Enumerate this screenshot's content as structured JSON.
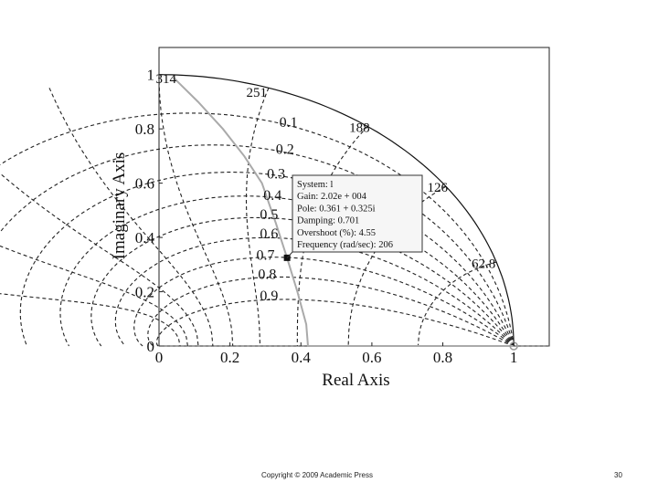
{
  "chart_data": {
    "type": "scatter",
    "title": "",
    "xlabel": "Real Axis",
    "ylabel": "Imaginary Axis",
    "xlim": [
      0,
      1.1
    ],
    "ylim": [
      0,
      1.1
    ],
    "xticks": [
      "0",
      "0.2",
      "0.4",
      "0.6",
      "0.8",
      "1"
    ],
    "yticks": [
      "0",
      "0.2",
      "0.4",
      "0.6",
      "0.8",
      "1"
    ],
    "grid": "z-plane (zgrid)",
    "damping_labels": [
      "0.1",
      "0.2",
      "0.3",
      "0.4",
      "0.5",
      "0.6",
      "0.7",
      "0.8",
      "0.9"
    ],
    "frequency_labels": [
      "314",
      "251",
      "188",
      "126",
      "62.8"
    ],
    "root_locus": {
      "real": [
        0.04,
        0.11,
        0.18,
        0.24,
        0.29,
        0.33,
        0.361,
        0.39,
        0.415,
        0.42,
        1.0
      ],
      "imag": [
        0.99,
        0.9,
        0.8,
        0.7,
        0.6,
        0.45,
        0.325,
        0.2,
        0.08,
        0.0,
        0.0
      ]
    },
    "selected_point": {
      "real": 0.361,
      "imag": 0.325
    },
    "datatip": [
      "System: l",
      "Gain: 2.02e + 004",
      "Pole: 0.361 + 0.325i",
      "Damping: 0.701",
      "Overshoot (%): 4.55",
      "Frequency (rad/sec): 206"
    ]
  },
  "footer": {
    "copyright": "Copyright © 2009 Academic Press",
    "page_number": "30"
  }
}
